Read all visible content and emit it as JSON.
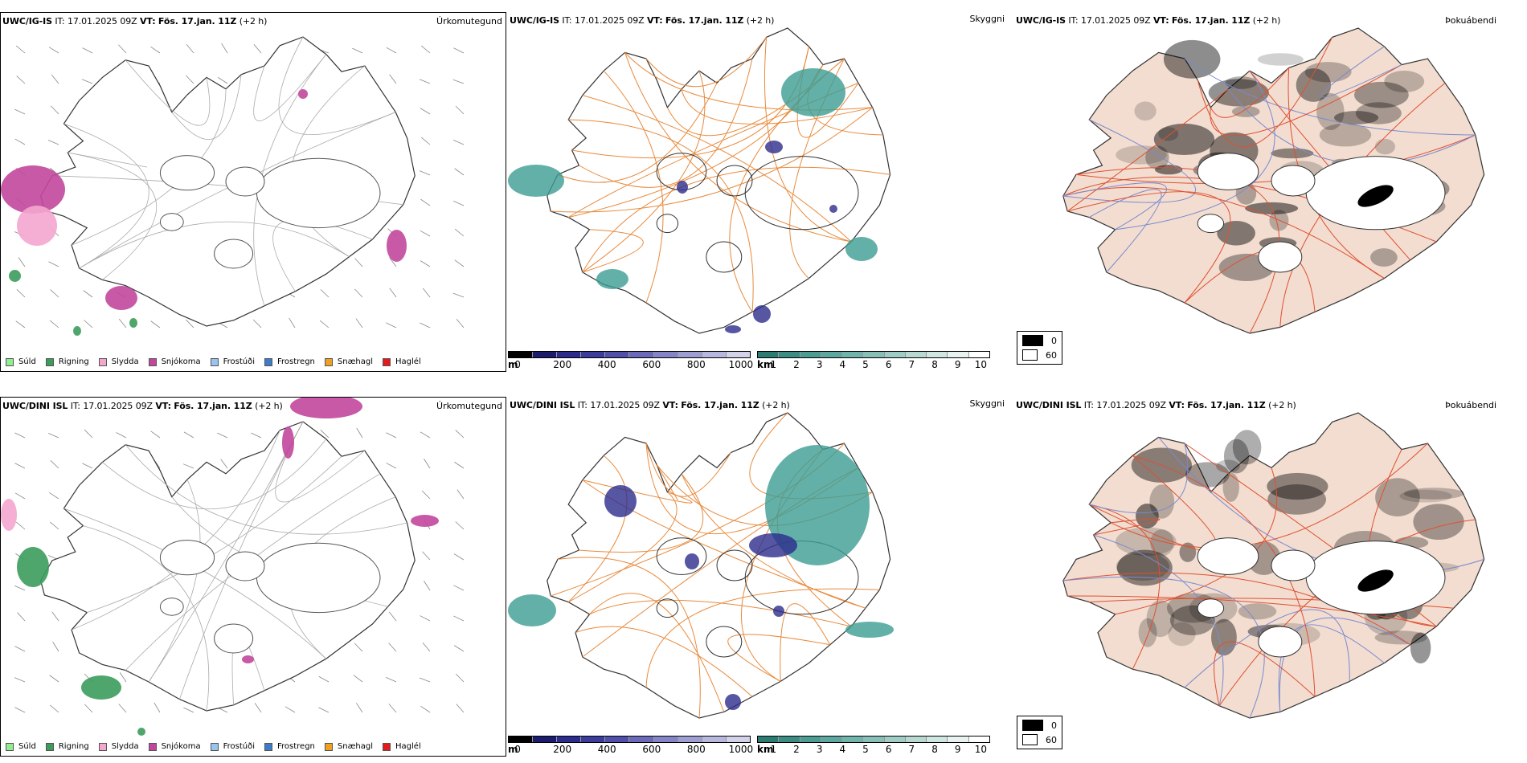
{
  "colors": {
    "coast": "#333333",
    "road": "#e88a3c",
    "precip_magenta": "#c2479c",
    "precip_green": "#3c9c5c",
    "cloud_navy": "#2c2c8c",
    "vis_teal": "#3c9c94",
    "fog_tint": "#f2ddd0"
  },
  "rows": [
    {
      "model": "UWC/IG-IS",
      "it_label": "IT:",
      "it_value": "17.01.2025 09Z",
      "vt_label": "VT:",
      "vt_value": "Fös. 17.jan. 11Z",
      "offset": "(+2 h)"
    },
    {
      "model": "UWC/DINI ISL",
      "it_label": "IT:",
      "it_value": "17.01.2025 09Z",
      "vt_label": "VT:",
      "vt_value": "Fös. 17.jan. 11Z",
      "offset": "(+2 h)"
    }
  ],
  "panel_titles": {
    "precip": "Úrkomutegund",
    "visibility": "Skyggni",
    "fog": "Þokuábendi"
  },
  "precip_legend": [
    {
      "label": "Súld",
      "color": "#90ee90"
    },
    {
      "label": "Rigning",
      "color": "#3c9c5c"
    },
    {
      "label": "Slydda",
      "color": "#f4a6cf"
    },
    {
      "label": "Snjókoma",
      "color": "#c2479c"
    },
    {
      "label": "Frostúði",
      "color": "#9ac4f0"
    },
    {
      "label": "Frostregn",
      "color": "#3c7cc8"
    },
    {
      "label": "Snæhagl",
      "color": "#f0a020"
    },
    {
      "label": "Haglél",
      "color": "#e41a1c"
    }
  ],
  "cloudbase_scale": {
    "unit": "m",
    "ticks": [
      "0",
      "200",
      "400",
      "600",
      "800",
      "1000"
    ],
    "colors": [
      "#000000",
      "#1c1c6c",
      "#2c2c8c",
      "#3c3c9c",
      "#5050aa",
      "#6a6ab8",
      "#8484c6",
      "#9e9ed2",
      "#b8b8de",
      "#d2d2ea"
    ]
  },
  "visibility_scale": {
    "unit": "km",
    "ticks": [
      "1",
      "2",
      "3",
      "4",
      "5",
      "6",
      "7",
      "8",
      "9",
      "10"
    ],
    "colors": [
      "#2c7c74",
      "#3c8c84",
      "#4c9c94",
      "#5ca8a0",
      "#70b4ac",
      "#88c0b8",
      "#a0ccc6",
      "#b8d8d2",
      "#d0e6e2",
      "#e8f2f0",
      "#ffffff"
    ]
  },
  "fog_scale": {
    "items": [
      {
        "label": "0",
        "color": "#000000"
      },
      {
        "label": "60",
        "color": "#ffffff"
      }
    ]
  }
}
